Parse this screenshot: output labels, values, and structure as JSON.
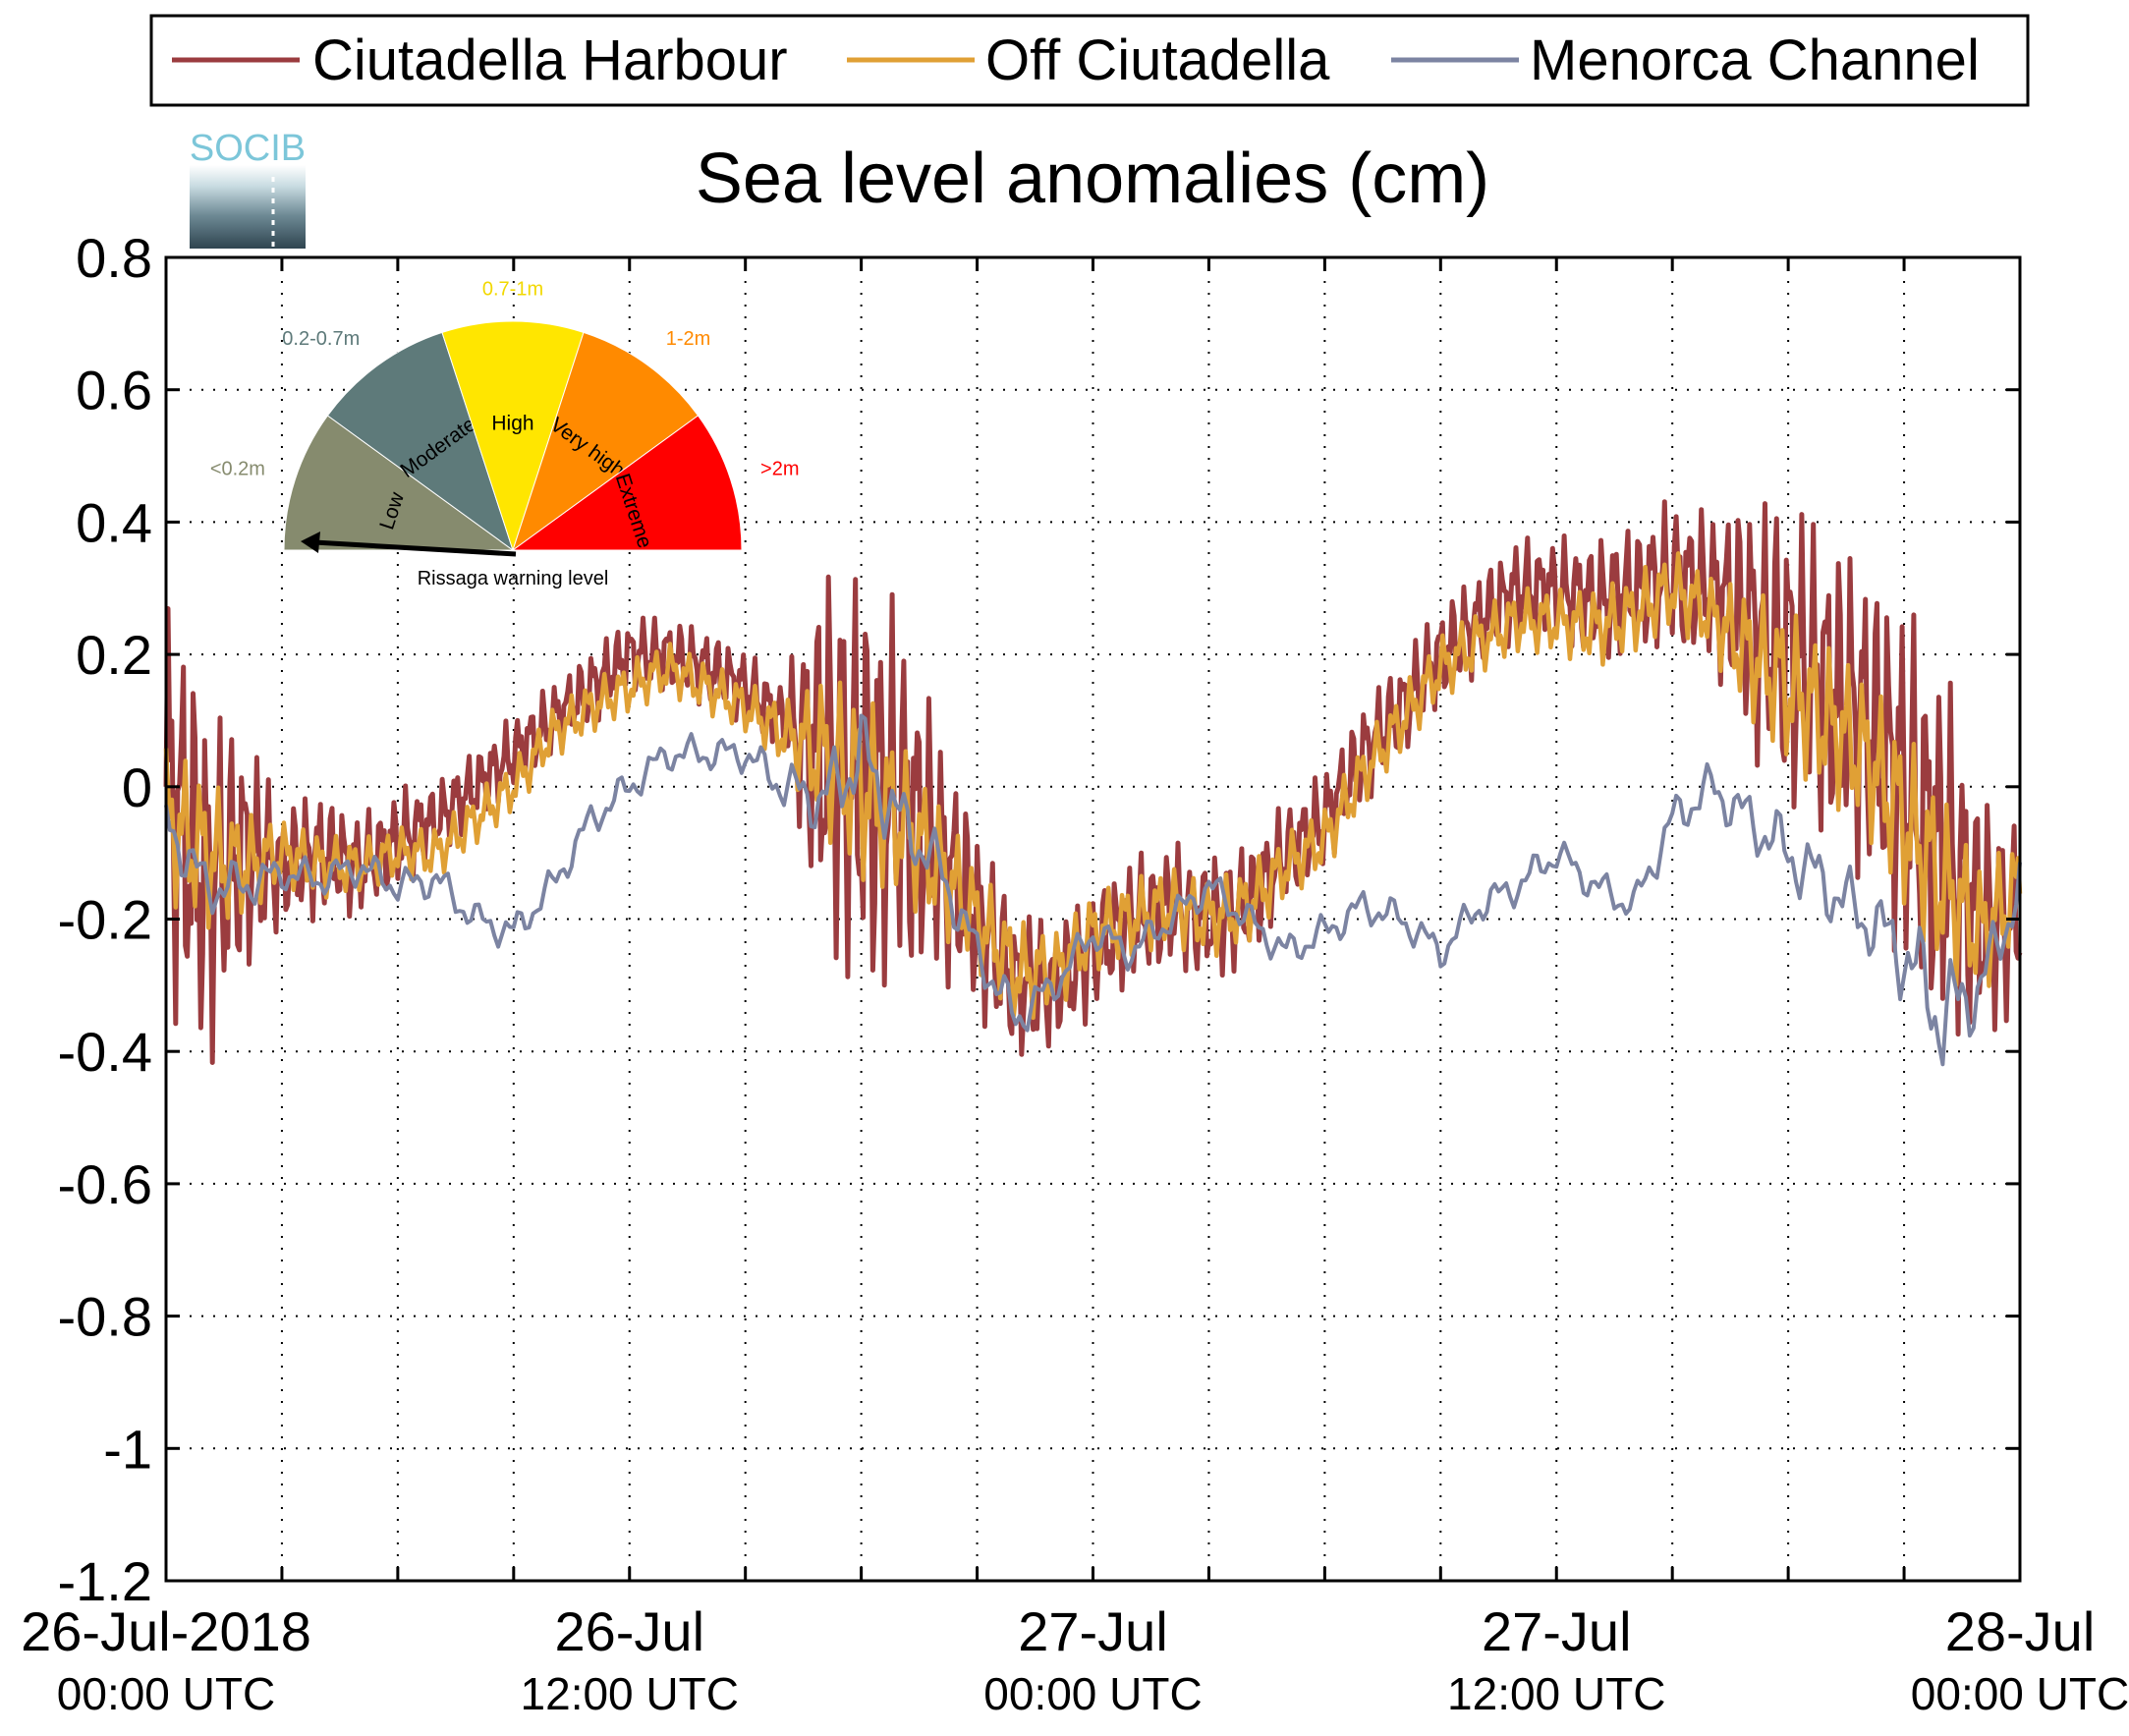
{
  "logo": {
    "text": "SOCIB"
  },
  "chart_data": {
    "type": "line",
    "title": "Sea level anomalies (cm)",
    "xlabel": "",
    "ylabel": "",
    "ylim": [
      -1.2,
      0.8
    ],
    "yticks": [
      "0.8",
      "0.6",
      "0.4",
      "0.2",
      "0",
      "-0.2",
      "-0.4",
      "-0.6",
      "-0.8",
      "-1",
      "-1.2"
    ],
    "xlim_hours": [
      0,
      48
    ],
    "xticks": [
      {
        "line1": "26-Jul-2018",
        "line2": "00:00 UTC",
        "hour": 0
      },
      {
        "line1": "26-Jul",
        "line2": "12:00 UTC",
        "hour": 12
      },
      {
        "line1": "27-Jul",
        "line2": "00:00 UTC",
        "hour": 24
      },
      {
        "line1": "27-Jul",
        "line2": "12:00 UTC",
        "hour": 36
      },
      {
        "line1": "28-Jul",
        "line2": "00:00 UTC",
        "hour": 48
      }
    ],
    "grid": true,
    "legend_position": "top",
    "series": [
      {
        "name": "Ciutadella Harbour",
        "color": "#9b3c3f",
        "hours": [
          0,
          1,
          2,
          3,
          4,
          5,
          6,
          7,
          8,
          9,
          10,
          11,
          12,
          13,
          14,
          15,
          16,
          17,
          18,
          19,
          20,
          21,
          22,
          23,
          24,
          25,
          26,
          27,
          28,
          29,
          30,
          31,
          32,
          33,
          34,
          35,
          36,
          37,
          38,
          39,
          40,
          41,
          42,
          43,
          44,
          45,
          46,
          47,
          48
        ],
        "values": [
          0.0,
          -0.15,
          -0.1,
          -0.12,
          -0.1,
          -0.12,
          -0.08,
          -0.05,
          0.0,
          0.05,
          0.1,
          0.15,
          0.2,
          0.2,
          0.18,
          0.15,
          0.1,
          0.05,
          0.0,
          -0.02,
          -0.1,
          -0.2,
          -0.3,
          -0.3,
          -0.25,
          -0.2,
          -0.18,
          -0.2,
          -0.18,
          -0.1,
          -0.05,
          0.05,
          0.12,
          0.2,
          0.25,
          0.3,
          0.3,
          0.28,
          0.3,
          0.32,
          0.3,
          0.25,
          0.2,
          0.15,
          0.1,
          0.0,
          -0.1,
          -0.2,
          -0.2
        ],
        "noise": [
          0.35,
          0.3,
          0.2,
          0.1,
          0.1,
          0.08,
          0.08,
          0.06,
          0.06,
          0.06,
          0.06,
          0.06,
          0.06,
          0.06,
          0.06,
          0.06,
          0.06,
          0.3,
          0.35,
          0.3,
          0.2,
          0.15,
          0.12,
          0.1,
          0.1,
          0.1,
          0.1,
          0.1,
          0.1,
          0.08,
          0.08,
          0.08,
          0.08,
          0.08,
          0.08,
          0.08,
          0.08,
          0.1,
          0.1,
          0.12,
          0.12,
          0.2,
          0.25,
          0.25,
          0.25,
          0.3,
          0.3,
          0.2,
          0.15
        ]
      },
      {
        "name": "Off Ciutadella",
        "color": "#e0a035",
        "hours": [
          0,
          1,
          2,
          3,
          4,
          5,
          6,
          7,
          8,
          9,
          10,
          11,
          12,
          13,
          14,
          15,
          16,
          17,
          18,
          19,
          20,
          21,
          22,
          23,
          24,
          25,
          26,
          27,
          28,
          29,
          30,
          31,
          32,
          33,
          34,
          35,
          36,
          37,
          38,
          39,
          40,
          41,
          42,
          43,
          44,
          45,
          46,
          47,
          48
        ],
        "values": [
          -0.05,
          -0.1,
          -0.12,
          -0.1,
          -0.12,
          -0.12,
          -0.1,
          -0.1,
          -0.05,
          0.0,
          0.08,
          0.12,
          0.15,
          0.18,
          0.15,
          0.12,
          0.08,
          0.05,
          0.0,
          -0.05,
          -0.12,
          -0.2,
          -0.28,
          -0.28,
          -0.22,
          -0.2,
          -0.18,
          -0.2,
          -0.18,
          -0.12,
          -0.08,
          0.02,
          0.1,
          0.18,
          0.22,
          0.25,
          0.25,
          0.24,
          0.26,
          0.3,
          0.26,
          0.2,
          0.15,
          0.1,
          0.05,
          -0.05,
          -0.15,
          -0.22,
          -0.15
        ],
        "noise": [
          0.12,
          0.12,
          0.08,
          0.05,
          0.05,
          0.04,
          0.04,
          0.04,
          0.04,
          0.04,
          0.04,
          0.04,
          0.04,
          0.04,
          0.04,
          0.04,
          0.05,
          0.12,
          0.15,
          0.12,
          0.1,
          0.08,
          0.08,
          0.06,
          0.06,
          0.06,
          0.06,
          0.06,
          0.06,
          0.05,
          0.05,
          0.05,
          0.05,
          0.05,
          0.05,
          0.05,
          0.05,
          0.06,
          0.06,
          0.06,
          0.06,
          0.1,
          0.12,
          0.12,
          0.12,
          0.14,
          0.14,
          0.1,
          0.08
        ]
      },
      {
        "name": "Menorca Channel",
        "color": "#7c84a2",
        "hours": [
          0,
          1,
          2,
          3,
          4,
          5,
          6,
          7,
          8,
          9,
          10,
          11,
          12,
          13,
          14,
          15,
          16,
          17,
          18,
          19,
          20,
          21,
          22,
          23,
          24,
          25,
          26,
          27,
          28,
          29,
          30,
          31,
          32,
          33,
          34,
          35,
          36,
          37,
          38,
          39,
          40,
          41,
          42,
          43,
          44,
          45,
          46,
          47,
          48
        ],
        "values": [
          -0.05,
          -0.15,
          -0.15,
          -0.13,
          -0.14,
          -0.12,
          -0.15,
          -0.14,
          -0.2,
          -0.22,
          -0.15,
          -0.05,
          0.0,
          0.05,
          0.05,
          0.05,
          0.0,
          -0.02,
          0.05,
          -0.05,
          -0.12,
          -0.25,
          -0.35,
          -0.3,
          -0.22,
          -0.25,
          -0.2,
          -0.15,
          -0.2,
          -0.25,
          -0.22,
          -0.18,
          -0.2,
          -0.25,
          -0.18,
          -0.15,
          -0.1,
          -0.15,
          -0.18,
          -0.05,
          0.0,
          -0.05,
          -0.1,
          -0.15,
          -0.2,
          -0.25,
          -0.35,
          -0.3,
          -0.15
        ],
        "noise": [
          0.05,
          0.05,
          0.04,
          0.03,
          0.03,
          0.03,
          0.03,
          0.03,
          0.03,
          0.03,
          0.03,
          0.03,
          0.03,
          0.03,
          0.03,
          0.03,
          0.04,
          0.06,
          0.08,
          0.06,
          0.05,
          0.04,
          0.04,
          0.03,
          0.03,
          0.03,
          0.03,
          0.03,
          0.03,
          0.03,
          0.03,
          0.03,
          0.03,
          0.03,
          0.03,
          0.03,
          0.03,
          0.03,
          0.03,
          0.04,
          0.04,
          0.05,
          0.06,
          0.06,
          0.06,
          0.08,
          0.1,
          0.06,
          0.05
        ]
      }
    ]
  },
  "gauge": {
    "caption": "Rissaga warning level",
    "segments": [
      {
        "label": "Low",
        "range": "<0.2m",
        "color": "#868b6e"
      },
      {
        "label": "Moderate",
        "range": "0.2-0.7m",
        "color": "#5e7a7a"
      },
      {
        "label": "High",
        "range": "0.7-1m",
        "color": "#ffe600"
      },
      {
        "label": "Very high",
        "range": "1-2m",
        "color": "#ff8a00"
      },
      {
        "label": "Extreme",
        "range": ">2m",
        "color": "#ff0000"
      }
    ],
    "range_colors": [
      "#868b6e",
      "#5e7a7a",
      "#f2d800",
      "#ff8a00",
      "#ff0000"
    ],
    "current_level": "Low"
  }
}
